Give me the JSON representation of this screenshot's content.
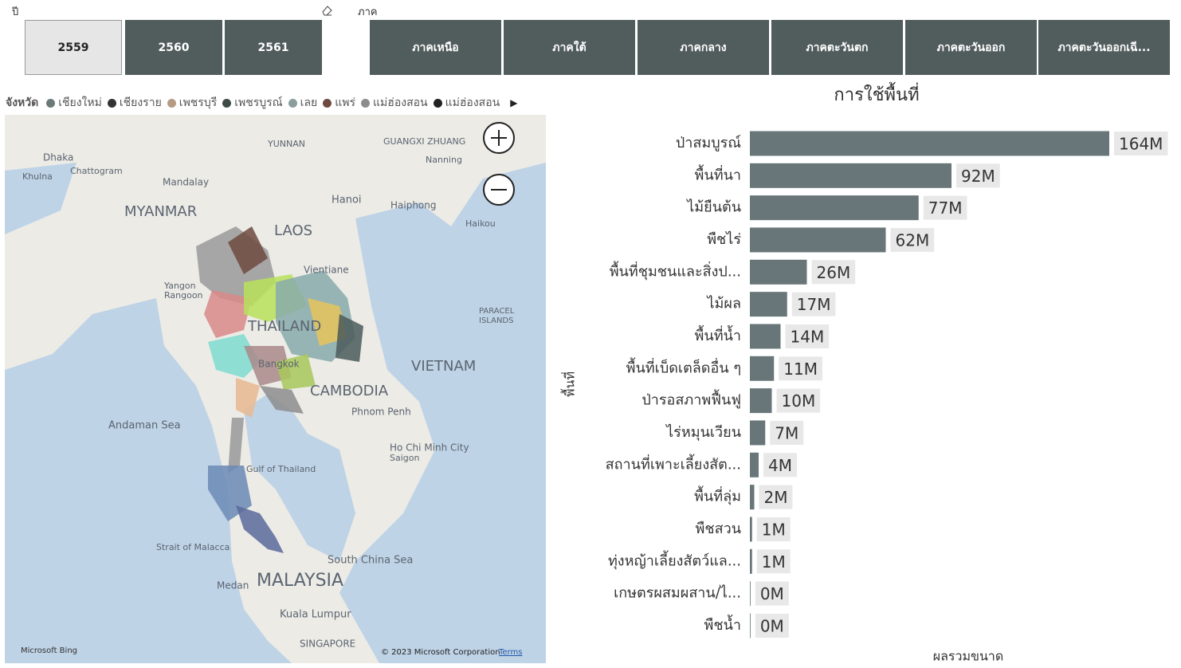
{
  "year_slicer": {
    "title": "ปี",
    "options": [
      "2559",
      "2560",
      "2561"
    ]
  },
  "region_slicer": {
    "title": "ภาค",
    "options": [
      "ภาคเหนือ",
      "ภาคใต้",
      "ภาคกลาง",
      "ภาคตะวันตก",
      "ภาคตะวันออก",
      "ภาคตะวันออกเฉี..."
    ]
  },
  "map": {
    "legend_title": "จังหวัด",
    "legend": [
      {
        "name": "เชียงใหม่",
        "color": "#6a7a78"
      },
      {
        "name": "เชียงราย",
        "color": "#333333"
      },
      {
        "name": "เพชรบุรี",
        "color": "#b59b84"
      },
      {
        "name": "เพชรบูรณ์",
        "color": "#3c4a48"
      },
      {
        "name": "เลย",
        "color": "#8b9d9d"
      },
      {
        "name": "แพร่",
        "color": "#6e4a40"
      },
      {
        "name": "แม่ฮ่องสอน",
        "color": "#8c8c8c"
      },
      {
        "name": "แม่ฮ่องสอน",
        "color": "#222222"
      }
    ],
    "labels": [
      "Dhaka",
      "Khulna",
      "Chattogram",
      "Mandalay",
      "MYANMAR",
      "YUNNAN",
      "GUANGXI ZHUANG",
      "Nanning",
      "Hanoi",
      "Haiphong",
      "Haikou",
      "LAOS",
      "Vientiane",
      "Yangon",
      "Rangoon",
      "THAILAND",
      "Bangkok",
      "VIETNAM",
      "CAMBODIA",
      "Phnom Penh",
      "PARACEL",
      "ISLANDS",
      "Andaman Sea",
      "Gulf of Thailand",
      "Ho Chi Minh City",
      "Saigon",
      "Strait of Malacca",
      "South China Sea",
      "MALAYSIA",
      "Medan",
      "Kuala Lumpur",
      "SINGAPORE"
    ],
    "brand": "Microsoft Bing",
    "copyright": "© 2023 Microsoft Corporation",
    "terms": "Terms"
  },
  "chart_data": {
    "type": "bar",
    "orientation": "horizontal",
    "title": "การใช้พื้นที่",
    "y_label": "พื้นที่",
    "x_label": "ผลรวมขนาด",
    "color": "#68767a",
    "categories": [
      "ป่าสมบูรณ์",
      "พื้นที่นา",
      "ไม้ยืนต้น",
      "พืชไร่",
      "พื้นที่ชุมชนและสิ่งป...",
      "ไม้ผล",
      "พื้นที่น้ำ",
      "พื้นที่เบ็ดเตล็ดอื่น ๆ",
      "ป่ารอสภาพฟื้นฟู",
      "ไร่หมุนเวียน",
      "สถานที่เพาะเลี้ยงสัต...",
      "พื้นที่ลุ่ม",
      "พืชสวน",
      "ทุ่งหญ้าเลี้ยงสัตว์แล...",
      "เกษตรผสมผสาน/ไ...",
      "พืชน้ำ"
    ],
    "values": [
      164000000,
      92000000,
      77000000,
      62000000,
      26000000,
      17000000,
      14000000,
      11000000,
      10000000,
      7000000,
      4000000,
      2000000,
      1000000,
      1000000,
      300000,
      300000
    ],
    "value_labels": [
      "164M",
      "92M",
      "77M",
      "62M",
      "26M",
      "17M",
      "14M",
      "11M",
      "10M",
      "7M",
      "4M",
      "2M",
      "1M",
      "1M",
      "0M",
      "0M"
    ]
  }
}
